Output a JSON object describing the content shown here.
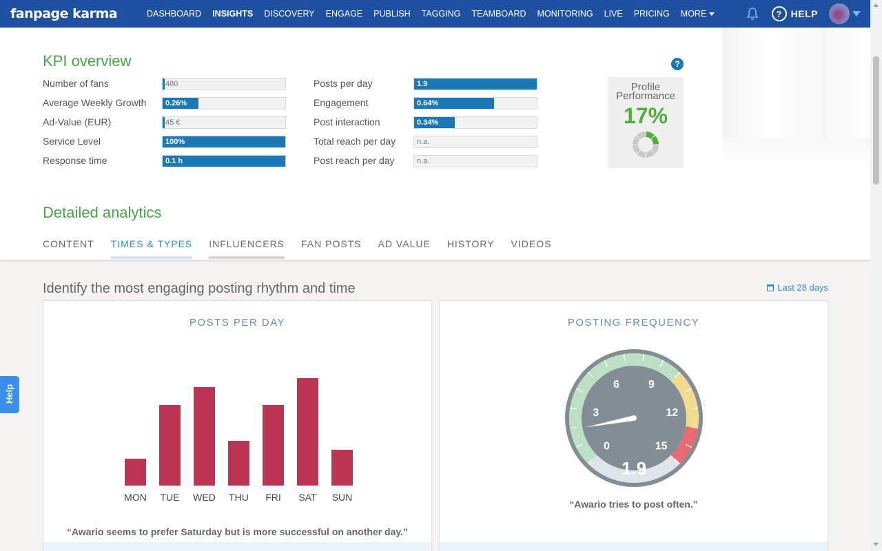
{
  "brand": {
    "name": "fanpage karma"
  },
  "nav": {
    "items": [
      "DASHBOARD",
      "INSIGHTS",
      "DISCOVERY",
      "ENGAGE",
      "PUBLISH",
      "TAGGING",
      "TEAMBOARD",
      "MONITORING",
      "LIVE",
      "PRICING",
      "MORE"
    ],
    "active": "INSIGHTS",
    "help_label": "HELP",
    "help_symbol": "?"
  },
  "kpi": {
    "title": "KPI overview",
    "left": [
      {
        "label": "Number of fans",
        "value": "480",
        "level": 0.01
      },
      {
        "label": "Average Weekly Growth",
        "value": "0.26%",
        "level": 0.29
      },
      {
        "label": "Ad-Value (EUR)",
        "value": "45 €",
        "level": 0.01
      },
      {
        "label": "Service Level",
        "value": "100%",
        "level": 1.0
      },
      {
        "label": "Response time",
        "value": "0.1 h",
        "level": 1.0
      }
    ],
    "right": [
      {
        "label": "Posts per day",
        "value": "1.9",
        "level": 1.0
      },
      {
        "label": "Engagement",
        "value": "0.64%",
        "level": 0.65
      },
      {
        "label": "Post interaction",
        "value": "0.34%",
        "level": 0.33
      },
      {
        "label": "Total reach per day",
        "value": "n.a.",
        "level": 0
      },
      {
        "label": "Post reach per day",
        "value": "n.a.",
        "level": 0
      }
    ],
    "help_symbol": "?",
    "performance": {
      "label": "Profile Performance",
      "value": "17%",
      "level": 0.17,
      "color": "#52ad3a"
    }
  },
  "detailed": {
    "title": "Detailed analytics",
    "tabs": [
      "CONTENT",
      "TIMES & TYPES",
      "INFLUENCERS",
      "FAN POSTS",
      "AD VALUE",
      "HISTORY",
      "VIDEOS"
    ],
    "active_tab": "TIMES & TYPES"
  },
  "section": {
    "title": "Identify the most engaging posting rhythm and time",
    "date_range": "Last 28 days"
  },
  "posts_per_day": {
    "title": "POSTS PER DAY",
    "caption": "“Awario seems to prefer Saturday but is more successful on another day.”"
  },
  "chart_data": {
    "type": "bar",
    "categories": [
      "MON",
      "TUE",
      "WED",
      "THU",
      "FRI",
      "SAT",
      "SUN"
    ],
    "values": [
      1.5,
      4.5,
      5.5,
      2.5,
      4.5,
      6.0,
      2.0
    ],
    "ylim": [
      0,
      6.0
    ],
    "color": "#bc3553"
  },
  "posting_frequency": {
    "title": "POSTING FREQUENCY",
    "gauge_value": 1.9,
    "value_label": "1.9",
    "ticks": [
      "0",
      "3",
      "6",
      "9",
      "12",
      "15"
    ],
    "caption": "“Awario tries to post often.”"
  },
  "help_tab": {
    "label": "Help"
  }
}
